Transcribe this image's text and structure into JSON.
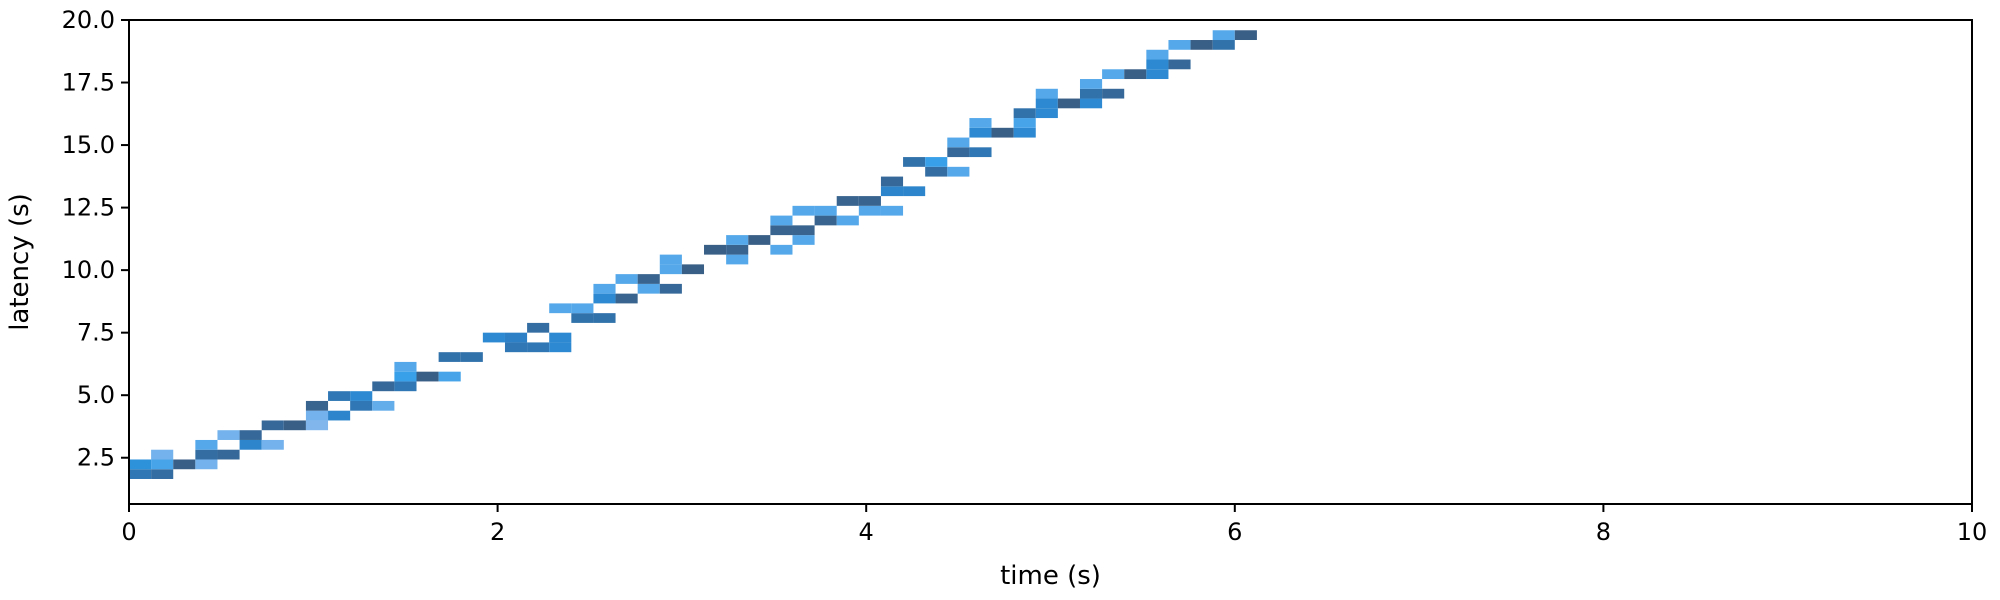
{
  "chart_data": {
    "type": "heatmap",
    "xlabel": "time (s)",
    "ylabel": "latency (s)",
    "xlim": [
      0,
      10
    ],
    "ylim": [
      0.65,
      20.0
    ],
    "grid": false,
    "x_ticks": [
      0,
      2,
      4,
      6,
      8,
      10
    ],
    "x_tick_labels": [
      "0",
      "2",
      "4",
      "6",
      "8",
      "10"
    ],
    "y_ticks": [
      2.5,
      5.0,
      7.5,
      10.0,
      12.5,
      15.0,
      17.5,
      20.0
    ],
    "y_tick_labels": [
      "2.5",
      "5.0",
      "7.5",
      "10.0",
      "12.5",
      "15.0",
      "17.5",
      "20.0"
    ],
    "bin_width": 0.12,
    "bin_height": 0.39,
    "colors": {
      "low": "#90bbed",
      "mid": "#2e9ce8",
      "high": "#2d7fc4",
      "max": "#3a5f86"
    },
    "cells": [
      {
        "x": 0.0,
        "y": 1.65,
        "c": 0.75
      },
      {
        "x": 0.0,
        "y": 2.04,
        "c": 0.45
      },
      {
        "x": 0.12,
        "y": 1.65,
        "c": 0.85
      },
      {
        "x": 0.12,
        "y": 2.04,
        "c": 0.25
      },
      {
        "x": 0.12,
        "y": 2.43,
        "c": 0.1
      },
      {
        "x": 0.24,
        "y": 2.04,
        "c": 1.0
      },
      {
        "x": 0.36,
        "y": 2.04,
        "c": 0.1
      },
      {
        "x": 0.36,
        "y": 2.43,
        "c": 0.85
      },
      {
        "x": 0.36,
        "y": 2.82,
        "c": 0.2
      },
      {
        "x": 0.48,
        "y": 2.43,
        "c": 0.9
      },
      {
        "x": 0.48,
        "y": 3.21,
        "c": 0.1
      },
      {
        "x": 0.6,
        "y": 2.82,
        "c": 0.6
      },
      {
        "x": 0.6,
        "y": 3.21,
        "c": 0.9
      },
      {
        "x": 0.72,
        "y": 2.82,
        "c": 0.1
      },
      {
        "x": 0.72,
        "y": 3.6,
        "c": 0.9
      },
      {
        "x": 0.84,
        "y": 3.6,
        "c": 1.0
      },
      {
        "x": 0.96,
        "y": 3.6,
        "c": 0.05
      },
      {
        "x": 0.96,
        "y": 3.99,
        "c": 0.1
      },
      {
        "x": 0.96,
        "y": 4.38,
        "c": 0.95
      },
      {
        "x": 1.08,
        "y": 3.99,
        "c": 0.6
      },
      {
        "x": 1.08,
        "y": 4.77,
        "c": 0.75
      },
      {
        "x": 1.2,
        "y": 4.38,
        "c": 0.75
      },
      {
        "x": 1.2,
        "y": 4.77,
        "c": 0.55
      },
      {
        "x": 1.32,
        "y": 4.38,
        "c": 0.15
      },
      {
        "x": 1.32,
        "y": 5.16,
        "c": 0.9
      },
      {
        "x": 1.44,
        "y": 5.16,
        "c": 0.75
      },
      {
        "x": 1.44,
        "y": 5.55,
        "c": 0.3
      },
      {
        "x": 1.44,
        "y": 5.94,
        "c": 0.2
      },
      {
        "x": 1.56,
        "y": 5.55,
        "c": 1.0
      },
      {
        "x": 1.68,
        "y": 5.55,
        "c": 0.25
      },
      {
        "x": 1.68,
        "y": 6.33,
        "c": 0.8
      },
      {
        "x": 1.8,
        "y": 6.33,
        "c": 0.8
      },
      {
        "x": 1.92,
        "y": 7.11,
        "c": 0.55
      },
      {
        "x": 2.04,
        "y": 6.72,
        "c": 0.75
      },
      {
        "x": 2.04,
        "y": 7.11,
        "c": 0.65
      },
      {
        "x": 2.16,
        "y": 6.72,
        "c": 0.75
      },
      {
        "x": 2.16,
        "y": 7.5,
        "c": 0.85
      },
      {
        "x": 2.28,
        "y": 6.72,
        "c": 0.55
      },
      {
        "x": 2.28,
        "y": 7.11,
        "c": 0.55
      },
      {
        "x": 2.28,
        "y": 8.28,
        "c": 0.2
      },
      {
        "x": 2.4,
        "y": 7.89,
        "c": 0.8
      },
      {
        "x": 2.4,
        "y": 8.28,
        "c": 0.2
      },
      {
        "x": 2.52,
        "y": 7.89,
        "c": 0.8
      },
      {
        "x": 2.52,
        "y": 8.67,
        "c": 0.55
      },
      {
        "x": 2.52,
        "y": 9.06,
        "c": 0.2
      },
      {
        "x": 2.64,
        "y": 8.67,
        "c": 0.95
      },
      {
        "x": 2.64,
        "y": 9.45,
        "c": 0.2
      },
      {
        "x": 2.76,
        "y": 9.06,
        "c": 0.2
      },
      {
        "x": 2.76,
        "y": 9.45,
        "c": 0.95
      },
      {
        "x": 2.88,
        "y": 9.06,
        "c": 0.9
      },
      {
        "x": 2.88,
        "y": 9.84,
        "c": 0.2
      },
      {
        "x": 2.88,
        "y": 10.23,
        "c": 0.2
      },
      {
        "x": 3.0,
        "y": 9.84,
        "c": 1.0
      },
      {
        "x": 3.12,
        "y": 10.62,
        "c": 1.0
      },
      {
        "x": 3.24,
        "y": 10.23,
        "c": 0.2
      },
      {
        "x": 3.24,
        "y": 10.62,
        "c": 0.95
      },
      {
        "x": 3.24,
        "y": 11.01,
        "c": 0.2
      },
      {
        "x": 3.36,
        "y": 11.01,
        "c": 1.0
      },
      {
        "x": 3.48,
        "y": 10.62,
        "c": 0.2
      },
      {
        "x": 3.48,
        "y": 11.4,
        "c": 0.95
      },
      {
        "x": 3.48,
        "y": 11.79,
        "c": 0.2
      },
      {
        "x": 3.6,
        "y": 11.01,
        "c": 0.2
      },
      {
        "x": 3.6,
        "y": 11.4,
        "c": 0.95
      },
      {
        "x": 3.6,
        "y": 12.18,
        "c": 0.2
      },
      {
        "x": 3.72,
        "y": 11.79,
        "c": 0.95
      },
      {
        "x": 3.72,
        "y": 12.18,
        "c": 0.2
      },
      {
        "x": 3.84,
        "y": 11.79,
        "c": 0.2
      },
      {
        "x": 3.84,
        "y": 12.57,
        "c": 0.95
      },
      {
        "x": 3.96,
        "y": 12.18,
        "c": 0.2
      },
      {
        "x": 3.96,
        "y": 12.57,
        "c": 0.95
      },
      {
        "x": 4.08,
        "y": 12.18,
        "c": 0.2
      },
      {
        "x": 4.08,
        "y": 12.96,
        "c": 0.6
      },
      {
        "x": 4.08,
        "y": 13.35,
        "c": 0.9
      },
      {
        "x": 4.2,
        "y": 12.96,
        "c": 0.6
      },
      {
        "x": 4.2,
        "y": 14.13,
        "c": 0.8
      },
      {
        "x": 4.32,
        "y": 13.74,
        "c": 0.85
      },
      {
        "x": 4.32,
        "y": 14.13,
        "c": 0.3
      },
      {
        "x": 4.44,
        "y": 13.74,
        "c": 0.2
      },
      {
        "x": 4.44,
        "y": 14.52,
        "c": 0.9
      },
      {
        "x": 4.44,
        "y": 14.91,
        "c": 0.2
      },
      {
        "x": 4.56,
        "y": 14.52,
        "c": 0.75
      },
      {
        "x": 4.56,
        "y": 15.3,
        "c": 0.55
      },
      {
        "x": 4.56,
        "y": 15.69,
        "c": 0.2
      },
      {
        "x": 4.68,
        "y": 15.3,
        "c": 1.0
      },
      {
        "x": 4.8,
        "y": 15.3,
        "c": 0.55
      },
      {
        "x": 4.8,
        "y": 15.69,
        "c": 0.25
      },
      {
        "x": 4.8,
        "y": 16.08,
        "c": 0.8
      },
      {
        "x": 4.92,
        "y": 16.08,
        "c": 0.55
      },
      {
        "x": 4.92,
        "y": 16.47,
        "c": 0.55
      },
      {
        "x": 4.92,
        "y": 16.86,
        "c": 0.2
      },
      {
        "x": 5.04,
        "y": 16.47,
        "c": 1.0
      },
      {
        "x": 5.16,
        "y": 16.47,
        "c": 0.55
      },
      {
        "x": 5.16,
        "y": 16.86,
        "c": 0.8
      },
      {
        "x": 5.16,
        "y": 17.25,
        "c": 0.2
      },
      {
        "x": 5.28,
        "y": 16.86,
        "c": 0.9
      },
      {
        "x": 5.28,
        "y": 17.64,
        "c": 0.2
      },
      {
        "x": 5.4,
        "y": 17.64,
        "c": 1.0
      },
      {
        "x": 5.52,
        "y": 17.64,
        "c": 0.55
      },
      {
        "x": 5.52,
        "y": 18.03,
        "c": 0.55
      },
      {
        "x": 5.52,
        "y": 18.42,
        "c": 0.2
      },
      {
        "x": 5.64,
        "y": 18.03,
        "c": 0.9
      },
      {
        "x": 5.64,
        "y": 18.81,
        "c": 0.2
      },
      {
        "x": 5.76,
        "y": 18.81,
        "c": 1.0
      },
      {
        "x": 5.88,
        "y": 18.81,
        "c": 0.8
      },
      {
        "x": 5.88,
        "y": 19.2,
        "c": 0.2
      },
      {
        "x": 6.0,
        "y": 19.2,
        "c": 1.0
      }
    ]
  }
}
